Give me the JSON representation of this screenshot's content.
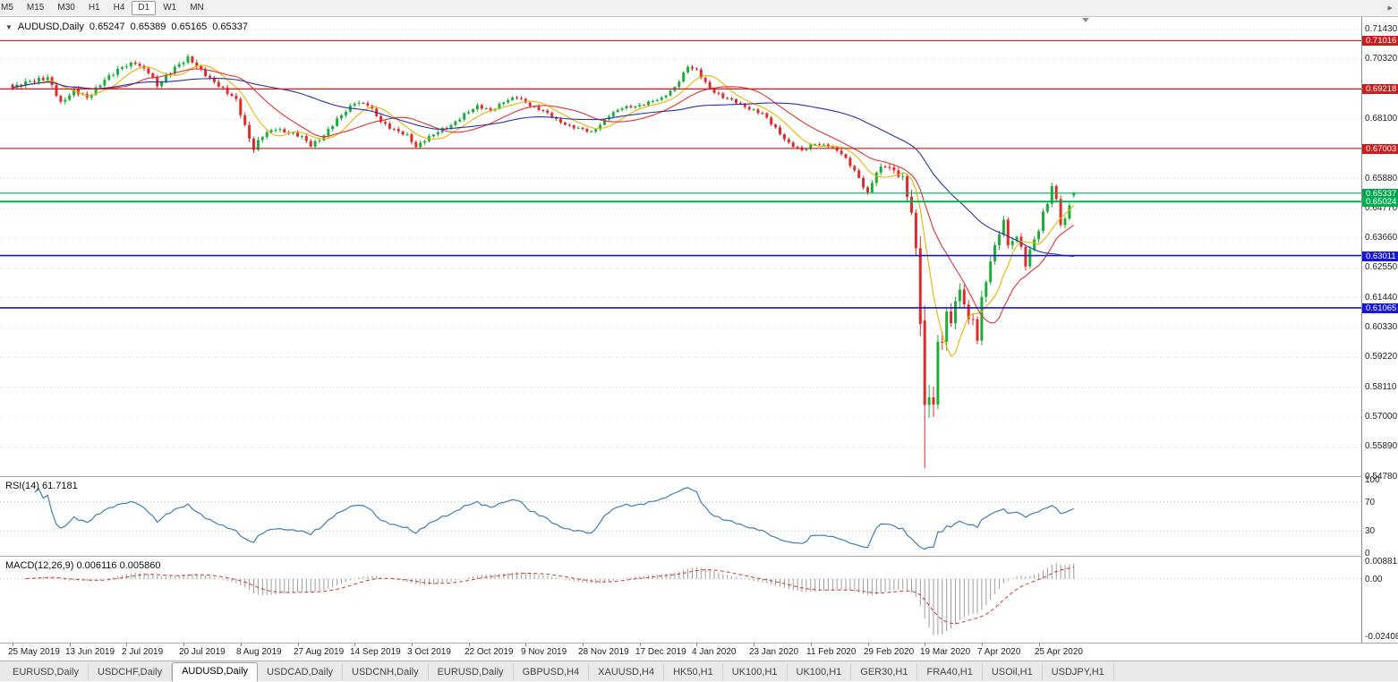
{
  "toolbar": {
    "timeframes": [
      "M5",
      "M15",
      "M30",
      "H1",
      "H4",
      "D1",
      "W1",
      "MN"
    ],
    "active_timeframe": "D1",
    "scroll_end_glyph": "▸"
  },
  "chart_header": {
    "collapse_icon": "▼",
    "symbol": "AUDUSD,Daily",
    "open": "0.65247",
    "high": "0.65389",
    "low": "0.65165",
    "close": "0.65337"
  },
  "price_axis": {
    "labels": [
      {
        "text": "0.71430",
        "price": 0.7143
      },
      {
        "text": "0.70320",
        "price": 0.7032
      },
      {
        "text": "0.68100",
        "price": 0.681
      },
      {
        "text": "0.65880",
        "price": 0.6588
      },
      {
        "text": "0.64770",
        "price": 0.6477
      },
      {
        "text": "0.63660",
        "price": 0.6366
      },
      {
        "text": "0.62550",
        "price": 0.6255
      },
      {
        "text": "0.61440",
        "price": 0.6144
      },
      {
        "text": "0.60330",
        "price": 0.6033
      },
      {
        "text": "0.59220",
        "price": 0.5922
      },
      {
        "text": "0.58110",
        "price": 0.5811
      },
      {
        "text": "0.57000",
        "price": 0.57
      },
      {
        "text": "0.55890",
        "price": 0.5589
      },
      {
        "text": "0.54780",
        "price": 0.5478
      }
    ],
    "badges": [
      {
        "text": "0.71016",
        "price": 0.71016,
        "color": "#c81e1e"
      },
      {
        "text": "0.69218",
        "price": 0.69218,
        "color": "#c81e1e"
      },
      {
        "text": "0.67003",
        "price": 0.67003,
        "color": "#c81e1e"
      },
      {
        "text": "0.65337",
        "price": 0.65337,
        "color": "#00a44c"
      },
      {
        "text": "0.65024",
        "price": 0.65024,
        "color": "#00b050"
      },
      {
        "text": "0.63011",
        "price": 0.63011,
        "color": "#1616d8"
      },
      {
        "text": "0.61065",
        "price": 0.61065,
        "color": "#1616d8"
      }
    ]
  },
  "rsi_panel": {
    "label": "RSI(14) 61.7181",
    "line_color": "#3e7fb8",
    "levels": [
      70,
      30
    ],
    "axis_labels": [
      {
        "text": "100",
        "value": 100
      },
      {
        "text": "70",
        "value": 70
      },
      {
        "text": "30",
        "value": 30
      },
      {
        "text": "0",
        "value": 0
      }
    ]
  },
  "macd_panel": {
    "label": "MACD(12,26,9) 0.006116 0.005860",
    "histogram_color": "#9b9b9b",
    "signal_color": "#d23535",
    "axis_labels": {
      "max": "0.008815",
      "zero": "0.00",
      "min": "-0.02408"
    }
  },
  "date_axis": {
    "labels": [
      "25 May 2019",
      "13 Jun 2019",
      "2 Jul 2019",
      "20 Jul 2019",
      "8 Aug 2019",
      "27 Aug 2019",
      "14 Sep 2019",
      "3 Oct 2019",
      "22 Oct 2019",
      "9 Nov 2019",
      "28 Nov 2019",
      "17 Dec 2019",
      "4 Jan 2020",
      "23 Jan 2020",
      "11 Feb 2020",
      "29 Feb 2020",
      "19 Mar 2020",
      "7 Apr 2020",
      "25 Apr 2020"
    ]
  },
  "tabs": {
    "items": [
      {
        "label": "EURUSD,Daily"
      },
      {
        "label": "USDCHF,Daily"
      },
      {
        "label": "AUDUSD,Daily",
        "active": true
      },
      {
        "label": "USDCAD,Daily"
      },
      {
        "label": "USDCNH,Daily"
      },
      {
        "label": "EURUSD,Daily"
      },
      {
        "label": "GBPUSD,H4"
      },
      {
        "label": "XAUUSD,H4"
      },
      {
        "label": "HK50,H1"
      },
      {
        "label": "UK100,H1"
      },
      {
        "label": "UK100,H1"
      },
      {
        "label": "GER30,H1"
      },
      {
        "label": "FRA40,H1"
      },
      {
        "label": "USOil,H1"
      },
      {
        "label": "USDJPY,H1"
      }
    ]
  },
  "colors": {
    "up_candle": "#1cae39",
    "down_candle": "#dd2c2c",
    "grid": "#d6d6d6",
    "level_dotted": "#bcbcbc",
    "shift_marker": "#8f8f8f"
  },
  "chart_data": {
    "type": "candlestick",
    "symbol": "AUDUSD",
    "timeframe": "Daily",
    "last_candle": {
      "open": 0.65247,
      "high": 0.65389,
      "low": 0.65165,
      "close": 0.65337
    },
    "price_range": [
      0.54797,
      0.71897
    ],
    "grid": {
      "base": 0.5478,
      "step": 0.0111
    },
    "candle_count": 243,
    "candles_per_tick": 13,
    "hlines": [
      {
        "price": 0.71016,
        "color": "#c81e1e",
        "width": 1.2
      },
      {
        "price": 0.69218,
        "color": "#c81e1e",
        "width": 1.2
      },
      {
        "price": 0.67003,
        "color": "#c81e1e",
        "width": 1.2
      },
      {
        "price": 0.65337,
        "color": "#00b050",
        "width": 1.2
      },
      {
        "price": 0.65024,
        "color": "#00b050",
        "width": 2
      },
      {
        "price": 0.63011,
        "color": "#1616d8",
        "width": 1.6
      },
      {
        "price": 0.61065,
        "color": "#1616d8",
        "width": 1.6
      }
    ],
    "moving_averages": [
      {
        "period": 8,
        "color": "#e8b400"
      },
      {
        "period": 18,
        "color": "#e03232"
      },
      {
        "period": 45,
        "color": "#2b32a8"
      }
    ],
    "rsi_period": 14,
    "macd_params": [
      12,
      26,
      9
    ],
    "close_anchors": [
      [
        0,
        0.6922,
        0.0016
      ],
      [
        4,
        0.6955,
        0.0018
      ],
      [
        8,
        0.696,
        0.0018
      ],
      [
        11,
        0.687,
        0.0016
      ],
      [
        14,
        0.692,
        0.0015
      ],
      [
        17,
        0.6885,
        0.0015
      ],
      [
        21,
        0.696,
        0.0016
      ],
      [
        25,
        0.7,
        0.0015
      ],
      [
        28,
        0.7022,
        0.0014
      ],
      [
        31,
        0.6985,
        0.0014
      ],
      [
        33,
        0.693,
        0.0015
      ],
      [
        37,
        0.7005,
        0.0015
      ],
      [
        40,
        0.7035,
        0.0015
      ],
      [
        43,
        0.699,
        0.0014
      ],
      [
        46,
        0.695,
        0.0014
      ],
      [
        49,
        0.6905,
        0.0015
      ],
      [
        51,
        0.688,
        0.0016
      ],
      [
        53,
        0.6785,
        0.0021
      ],
      [
        55,
        0.67,
        0.0021
      ],
      [
        57,
        0.6745,
        0.0017
      ],
      [
        60,
        0.6775,
        0.0014
      ],
      [
        63,
        0.676,
        0.0013
      ],
      [
        66,
        0.674,
        0.0014
      ],
      [
        68,
        0.6712,
        0.0015
      ],
      [
        71,
        0.675,
        0.0014
      ],
      [
        74,
        0.6805,
        0.0014
      ],
      [
        78,
        0.6875,
        0.0014
      ],
      [
        81,
        0.6862,
        0.0013
      ],
      [
        84,
        0.68,
        0.0013
      ],
      [
        87,
        0.6772,
        0.0013
      ],
      [
        90,
        0.6745,
        0.0013
      ],
      [
        92,
        0.6705,
        0.0014
      ],
      [
        94,
        0.6735,
        0.0013
      ],
      [
        97,
        0.6762,
        0.0012
      ],
      [
        100,
        0.6785,
        0.0012
      ],
      [
        103,
        0.683,
        0.0012
      ],
      [
        106,
        0.6855,
        0.0012
      ],
      [
        109,
        0.6842,
        0.0011
      ],
      [
        112,
        0.6875,
        0.0011
      ],
      [
        115,
        0.689,
        0.0011
      ],
      [
        118,
        0.6862,
        0.0011
      ],
      [
        121,
        0.684,
        0.0011
      ],
      [
        124,
        0.6805,
        0.0011
      ],
      [
        127,
        0.6785,
        0.001
      ],
      [
        130,
        0.677,
        0.001
      ],
      [
        132,
        0.6758,
        0.001
      ],
      [
        134,
        0.679,
        0.001
      ],
      [
        136,
        0.6825,
        0.0011
      ],
      [
        139,
        0.685,
        0.001
      ],
      [
        142,
        0.6858,
        0.001
      ],
      [
        145,
        0.6872,
        0.001
      ],
      [
        148,
        0.6885,
        0.001
      ],
      [
        151,
        0.693,
        0.0011
      ],
      [
        154,
        0.7005,
        0.0012
      ],
      [
        156,
        0.6988,
        0.0012
      ],
      [
        159,
        0.6925,
        0.0012
      ],
      [
        162,
        0.689,
        0.0011
      ],
      [
        165,
        0.6872,
        0.0011
      ],
      [
        168,
        0.685,
        0.0011
      ],
      [
        171,
        0.6828,
        0.0011
      ],
      [
        174,
        0.6775,
        0.0012
      ],
      [
        177,
        0.672,
        0.0012
      ],
      [
        180,
        0.669,
        0.0012
      ],
      [
        183,
        0.672,
        0.0011
      ],
      [
        186,
        0.671,
        0.0011
      ],
      [
        189,
        0.668,
        0.0011
      ],
      [
        192,
        0.662,
        0.0012
      ],
      [
        195,
        0.653,
        0.0014
      ],
      [
        197,
        0.661,
        0.002
      ],
      [
        199,
        0.664,
        0.0019
      ],
      [
        201,
        0.662,
        0.0019
      ],
      [
        203,
        0.6585,
        0.0023
      ],
      [
        205,
        0.6455,
        0.004
      ],
      [
        206,
        0.631,
        0.0052
      ],
      [
        207,
        0.608,
        0.007
      ],
      [
        208,
        0.5745,
        0.01
      ],
      [
        209,
        0.579,
        0.0085
      ],
      [
        210,
        0.577,
        0.007
      ],
      [
        211,
        0.595,
        0.0065
      ],
      [
        212,
        0.5985,
        0.0055
      ],
      [
        213,
        0.608,
        0.005
      ],
      [
        214,
        0.6035,
        0.0046
      ],
      [
        215,
        0.615,
        0.0042
      ],
      [
        216,
        0.617,
        0.0038
      ],
      [
        217,
        0.613,
        0.0036
      ],
      [
        218,
        0.6075,
        0.0038
      ],
      [
        219,
        0.605,
        0.0034
      ],
      [
        220,
        0.599,
        0.0038
      ],
      [
        221,
        0.6135,
        0.0034
      ],
      [
        222,
        0.6195,
        0.003
      ],
      [
        223,
        0.629,
        0.0028
      ],
      [
        224,
        0.6335,
        0.0026
      ],
      [
        225,
        0.639,
        0.0025
      ],
      [
        226,
        0.644,
        0.0025
      ],
      [
        227,
        0.633,
        0.0027
      ],
      [
        228,
        0.636,
        0.0023
      ],
      [
        229,
        0.6362,
        0.0021
      ],
      [
        230,
        0.633,
        0.0021
      ],
      [
        231,
        0.6268,
        0.0023
      ],
      [
        232,
        0.632,
        0.0021
      ],
      [
        233,
        0.6372,
        0.0021
      ],
      [
        234,
        0.6395,
        0.0019
      ],
      [
        235,
        0.646,
        0.0019
      ],
      [
        236,
        0.6498,
        0.0019
      ],
      [
        237,
        0.655,
        0.0019
      ],
      [
        238,
        0.651,
        0.0021
      ],
      [
        239,
        0.642,
        0.0023
      ],
      [
        240,
        0.6435,
        0.0019
      ],
      [
        241,
        0.6498,
        0.0017
      ],
      [
        242,
        0.65337,
        0.0011
      ]
    ],
    "overrides": {
      "208": {
        "open": 0.606,
        "high": 0.6115,
        "low": 0.551,
        "close": 0.5745
      },
      "242": {
        "open": 0.65247,
        "high": 0.65389,
        "low": 0.65165,
        "close": 0.65337
      }
    }
  }
}
